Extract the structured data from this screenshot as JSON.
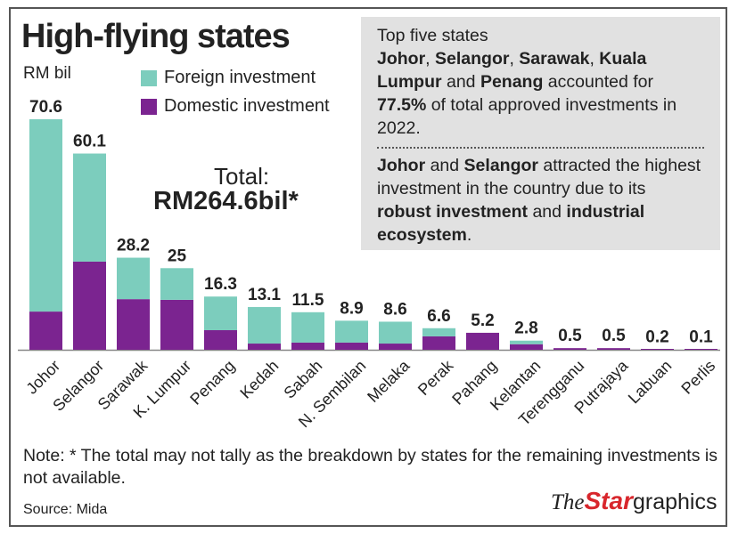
{
  "colors": {
    "foreign": "#7ccdbd",
    "domestic": "#7b2490",
    "box": "#e1e1e1"
  },
  "chart_data": {
    "type": "bar",
    "stacked": true,
    "title": "High-flying states",
    "ylabel": "RM bil",
    "ylim": [
      0,
      70.6
    ],
    "grid": false,
    "legend_placement": "top",
    "categories": [
      "Johor",
      "Selangor",
      "Sarawak",
      "K. Lumpur",
      "Penang",
      "Kedah",
      "Sabah",
      "N. Sembilan",
      "Melaka",
      "Perak",
      "Pahang",
      "Kelantan",
      "Terengganu",
      "Putrajaya",
      "Labuan",
      "Perlis"
    ],
    "totals": [
      70.6,
      60.1,
      28.2,
      25,
      16.3,
      13.1,
      11.5,
      8.9,
      8.6,
      6.6,
      5.2,
      2.8,
      0.5,
      0.5,
      0.2,
      0.1
    ],
    "total_labels": [
      "70.6",
      "60.1",
      "28.2",
      "25",
      "16.3",
      "13.1",
      "11.5",
      "8.9",
      "8.6",
      "6.6",
      "5.2",
      "2.8",
      "0.5",
      "0.5",
      "0.2",
      "0.1"
    ],
    "series": [
      {
        "name": "Domestic investment",
        "values": [
          11.7,
          27,
          15.5,
          15.3,
          6,
          1.9,
          2.2,
          2.2,
          1.9,
          4.1,
          5.2,
          1.7,
          0.5,
          0.5,
          0.2,
          0.1
        ]
      },
      {
        "name": "Foreign investment",
        "values": [
          58.9,
          33.1,
          12.7,
          9.7,
          10.3,
          11.2,
          9.3,
          6.7,
          6.7,
          2.5,
          0,
          1.1,
          0,
          0,
          0,
          0
        ]
      }
    ]
  },
  "total_label": "Total:",
  "total_value": "RM264.6bil*",
  "info": {
    "p1_heading": "Top five states",
    "p1_parts": [
      [
        "Johor",
        true
      ],
      [
        ", ",
        false
      ],
      [
        "Selangor",
        true
      ],
      [
        ", ",
        false
      ],
      [
        "Sarawak",
        true
      ],
      [
        ", ",
        false
      ],
      [
        "Kuala Lumpur",
        true
      ],
      [
        " and ",
        false
      ],
      [
        "Penang",
        true
      ],
      [
        " accounted for ",
        false
      ],
      [
        "77.5%",
        true
      ],
      [
        " of total approved investments in 2022.",
        false
      ]
    ],
    "p2_parts": [
      [
        "Johor",
        true
      ],
      [
        " and ",
        false
      ],
      [
        "Selangor",
        true
      ],
      [
        " attracted the highest investment in the country due to its ",
        false
      ],
      [
        "robust investment",
        true
      ],
      [
        " and ",
        false
      ],
      [
        "industrial ecosystem",
        true
      ],
      [
        ".",
        false
      ]
    ]
  },
  "note": "Note: * The total may not tally as the breakdown by states for the remaining investments is not available.",
  "source": "Source: Mida",
  "logo": {
    "the": "The",
    "star": "Star",
    "graphics": "graphics"
  }
}
